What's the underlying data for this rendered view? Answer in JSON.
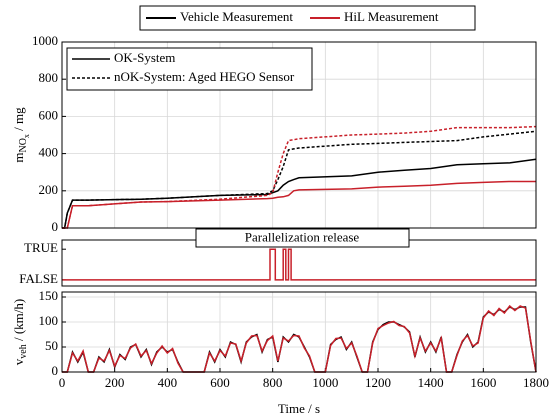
{
  "chart_data": [
    {
      "type": "line",
      "legend": [
        {
          "name": "Vehicle Measurement",
          "color": "#000000"
        },
        {
          "name": "HiL Measurement",
          "color": "#c8202a"
        }
      ],
      "styles": [
        {
          "name": "OK-System",
          "dash": false
        },
        {
          "name": "nOK-System: Aged HEGO Sensor",
          "dash": true
        }
      ],
      "ylabel": [
        "m",
        "NO",
        "x",
        " / mg"
      ],
      "xlim": [
        0,
        1800
      ],
      "xticks": [
        0,
        200,
        400,
        600,
        800,
        1000,
        1200,
        1400,
        1600,
        1800
      ],
      "ylim": [
        0,
        1000
      ],
      "yticks": [
        0,
        200,
        400,
        600,
        800,
        1000
      ],
      "grid": true,
      "x": [
        0,
        10,
        20,
        40,
        100,
        300,
        400,
        600,
        780,
        800,
        820,
        840,
        860,
        880,
        900,
        1100,
        1200,
        1300,
        1400,
        1500,
        1600,
        1700,
        1800
      ],
      "series": [
        {
          "color": "#000000",
          "dash": false,
          "values": [
            0,
            0,
            80,
            150,
            150,
            155,
            160,
            175,
            180,
            190,
            200,
            230,
            250,
            260,
            270,
            280,
            300,
            310,
            320,
            340,
            345,
            350,
            370
          ]
        },
        {
          "color": "#c8202a",
          "dash": false,
          "values": [
            0,
            0,
            0,
            120,
            120,
            140,
            142,
            150,
            158,
            160,
            165,
            168,
            175,
            200,
            205,
            210,
            220,
            225,
            230,
            240,
            245,
            250,
            250
          ]
        },
        {
          "color": "#000000",
          "dash": true,
          "values": [
            0,
            0,
            80,
            150,
            150,
            155,
            160,
            175,
            185,
            200,
            260,
            330,
            420,
            425,
            430,
            450,
            455,
            460,
            465,
            470,
            490,
            505,
            520
          ]
        },
        {
          "color": "#c8202a",
          "dash": true,
          "values": [
            0,
            0,
            0,
            120,
            120,
            140,
            142,
            155,
            175,
            190,
            300,
            400,
            470,
            475,
            480,
            500,
            505,
            510,
            520,
            540,
            540,
            540,
            545
          ]
        }
      ]
    },
    {
      "type": "line",
      "title": "Parallelization release",
      "xlim": [
        0,
        1800
      ],
      "ylim": [
        -0.2,
        1.3
      ],
      "yticks": [
        {
          "value": 1,
          "label": "TRUE"
        },
        {
          "value": 0,
          "label": "FALSE"
        }
      ],
      "grid": false,
      "x": [
        0,
        790,
        790,
        810,
        810,
        840,
        840,
        850,
        850,
        860,
        860,
        870,
        870,
        1800
      ],
      "series": [
        {
          "color": "#c8202a",
          "dash": false,
          "values": [
            0,
            0,
            1,
            1,
            0,
            0,
            1,
            1,
            0,
            0,
            1,
            1,
            0,
            0
          ]
        }
      ]
    },
    {
      "type": "line",
      "xlabel": "Time / s",
      "ylabel": [
        "v",
        "veh",
        " / (km/h)"
      ],
      "xlim": [
        0,
        1800
      ],
      "xticks": [
        0,
        200,
        400,
        600,
        800,
        1000,
        1200,
        1400,
        1600,
        1800
      ],
      "ylim": [
        0,
        160
      ],
      "yticks": [
        0,
        50,
        100,
        150
      ],
      "grid": true,
      "x": [
        0,
        20,
        40,
        60,
        80,
        100,
        120,
        140,
        160,
        180,
        200,
        220,
        240,
        260,
        280,
        300,
        320,
        340,
        360,
        380,
        400,
        420,
        440,
        460,
        540,
        560,
        580,
        600,
        620,
        640,
        660,
        680,
        700,
        720,
        740,
        760,
        780,
        800,
        820,
        840,
        860,
        880,
        900,
        920,
        940,
        960,
        1000,
        1020,
        1040,
        1060,
        1080,
        1100,
        1120,
        1140,
        1160,
        1180,
        1200,
        1220,
        1240,
        1260,
        1280,
        1300,
        1320,
        1340,
        1360,
        1380,
        1400,
        1420,
        1440,
        1460,
        1480,
        1500,
        1520,
        1540,
        1560,
        1580,
        1600,
        1620,
        1640,
        1660,
        1680,
        1700,
        1720,
        1740,
        1760,
        1780,
        1800
      ],
      "series": [
        {
          "color": "#000000",
          "dash": false,
          "values": [
            0,
            0,
            40,
            20,
            40,
            0,
            0,
            30,
            20,
            45,
            10,
            35,
            25,
            50,
            55,
            30,
            45,
            15,
            40,
            50,
            40,
            45,
            20,
            0,
            0,
            40,
            20,
            45,
            30,
            60,
            55,
            20,
            60,
            70,
            75,
            40,
            65,
            70,
            20,
            70,
            60,
            75,
            70,
            50,
            30,
            0,
            0,
            55,
            65,
            70,
            45,
            60,
            30,
            0,
            0,
            60,
            85,
            95,
            100,
            100,
            95,
            90,
            80,
            30,
            70,
            40,
            60,
            40,
            70,
            0,
            0,
            35,
            60,
            75,
            50,
            60,
            110,
            120,
            115,
            125,
            120,
            130,
            125,
            130,
            130,
            60,
            0
          ]
        },
        {
          "color": "#c8202a",
          "dash": false,
          "values": [
            0,
            0,
            38,
            22,
            42,
            0,
            0,
            28,
            22,
            43,
            12,
            33,
            27,
            48,
            56,
            32,
            43,
            17,
            38,
            52,
            38,
            47,
            18,
            0,
            0,
            38,
            22,
            43,
            32,
            58,
            56,
            22,
            58,
            72,
            73,
            42,
            63,
            72,
            22,
            68,
            62,
            73,
            72,
            48,
            32,
            0,
            0,
            53,
            67,
            68,
            47,
            58,
            32,
            0,
            0,
            58,
            87,
            93,
            98,
            101,
            93,
            91,
            78,
            32,
            68,
            42,
            58,
            42,
            68,
            0,
            0,
            33,
            62,
            73,
            52,
            58,
            108,
            122,
            113,
            127,
            118,
            132,
            123,
            132,
            128,
            62,
            0
          ]
        }
      ]
    }
  ]
}
